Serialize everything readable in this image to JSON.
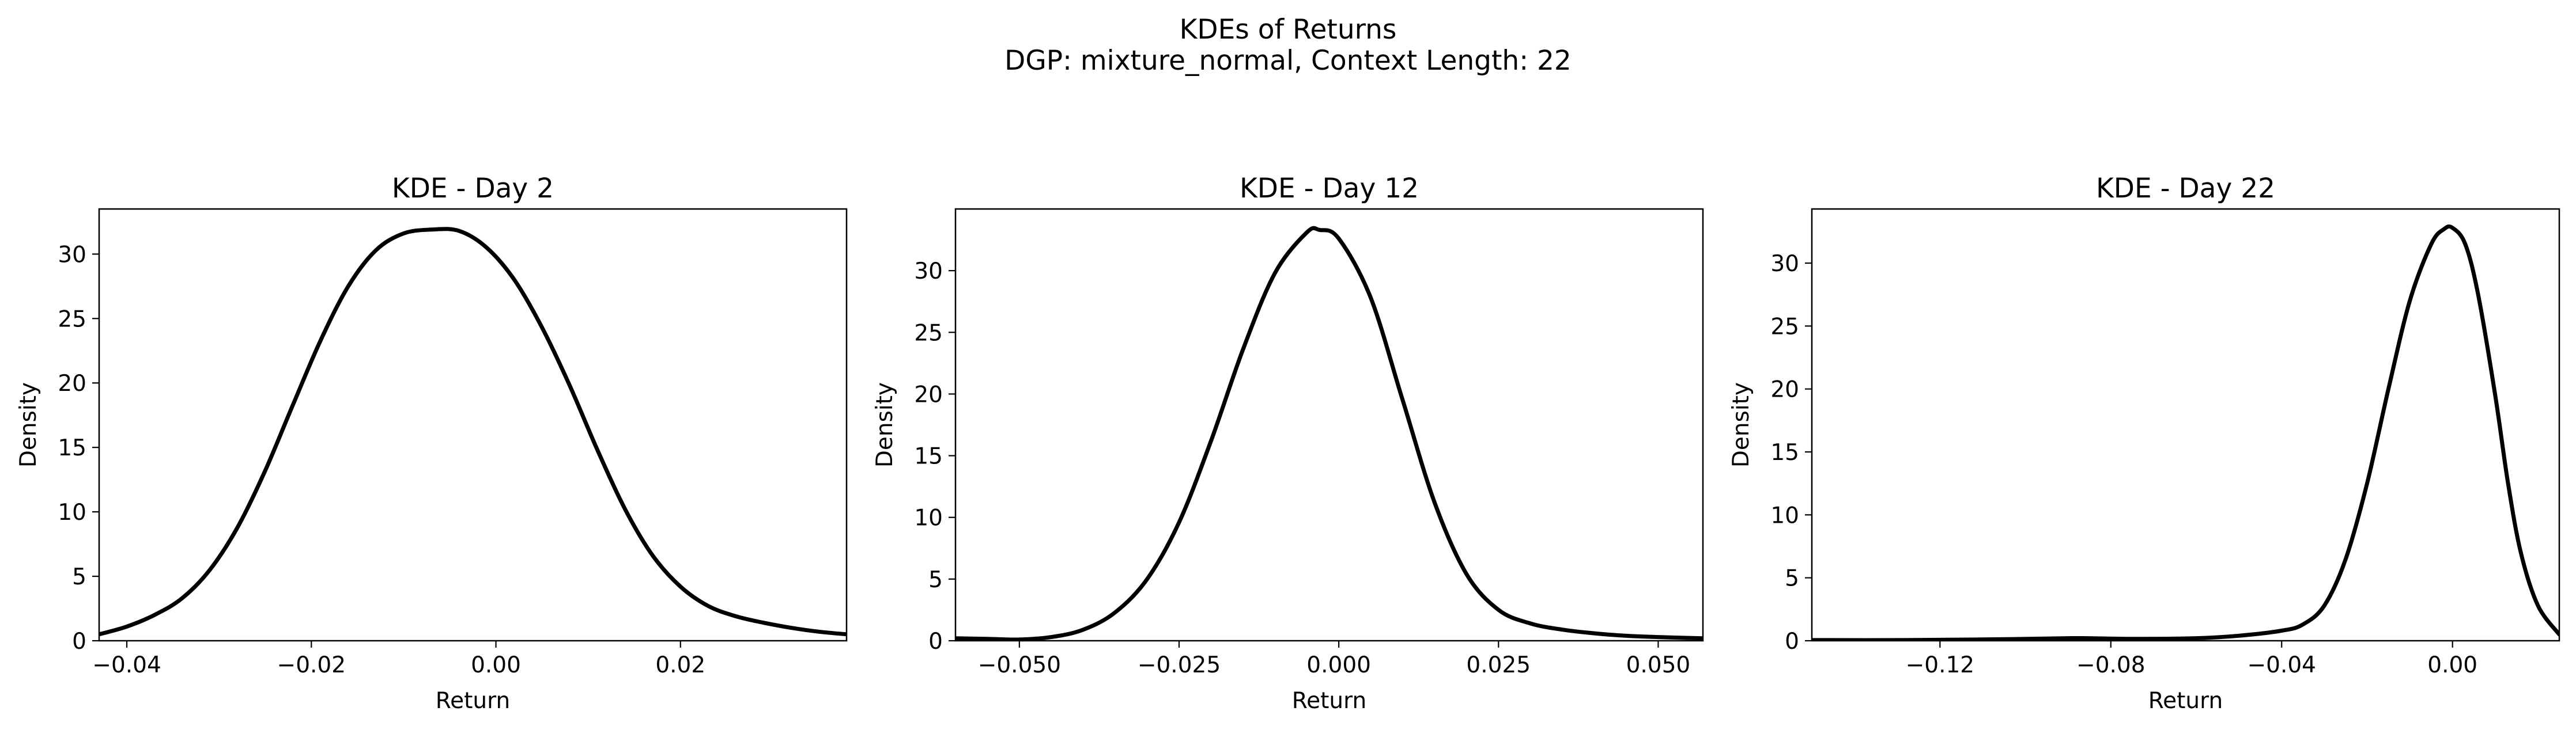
{
  "figure": {
    "title": "KDEs of Returns",
    "subtitle": "DGP: mixture_normal, Context Length: 22"
  },
  "chart_data": [
    {
      "type": "line",
      "title": "KDE - Day 2",
      "xlabel": "Return",
      "ylabel": "Density",
      "xlim": [
        -0.043,
        0.038
      ],
      "ylim": [
        0,
        33.5
      ],
      "xticks": [
        -0.04,
        -0.02,
        0.0,
        0.02
      ],
      "xtick_labels": [
        "−0.04",
        "−0.02",
        "0.00",
        "0.02"
      ],
      "yticks": [
        0,
        5,
        10,
        15,
        20,
        25,
        30
      ],
      "ytick_labels": [
        "0",
        "5",
        "10",
        "15",
        "20",
        "25",
        "30"
      ],
      "grid": false,
      "series": [
        {
          "color": "#000000",
          "x": [
            -0.043,
            -0.04,
            -0.037,
            -0.034,
            -0.031,
            -0.028,
            -0.025,
            -0.022,
            -0.019,
            -0.016,
            -0.013,
            -0.01,
            -0.007,
            -0.004,
            -0.001,
            0.002,
            0.005,
            0.008,
            0.011,
            0.014,
            0.017,
            0.02,
            0.023,
            0.026,
            0.029,
            0.032,
            0.035,
            0.038
          ],
          "y": [
            0.5,
            1.1,
            2.0,
            3.3,
            5.5,
            8.8,
            13.2,
            18.3,
            23.3,
            27.5,
            30.3,
            31.6,
            31.9,
            31.8,
            30.5,
            28.0,
            24.3,
            19.8,
            14.8,
            10.2,
            6.6,
            4.2,
            2.7,
            1.9,
            1.4,
            1.0,
            0.7,
            0.5
          ]
        }
      ]
    },
    {
      "type": "line",
      "title": "KDE - Day 12",
      "xlabel": "Return",
      "ylabel": "Density",
      "xlim": [
        -0.06,
        0.057
      ],
      "ylim": [
        0,
        35
      ],
      "xticks": [
        -0.05,
        -0.025,
        0.0,
        0.025,
        0.05
      ],
      "xtick_labels": [
        "−0.050",
        "−0.025",
        "0.000",
        "0.025",
        "0.050"
      ],
      "yticks": [
        0,
        5,
        10,
        15,
        20,
        25,
        30
      ],
      "ytick_labels": [
        "0",
        "5",
        "10",
        "15",
        "20",
        "25",
        "30"
      ],
      "grid": false,
      "series": [
        {
          "color": "#000000",
          "x": [
            -0.06,
            -0.055,
            -0.05,
            -0.045,
            -0.04,
            -0.035,
            -0.03,
            -0.025,
            -0.02,
            -0.015,
            -0.01,
            -0.005,
            -0.003,
            0.0,
            0.005,
            0.01,
            0.015,
            0.02,
            0.025,
            0.03,
            0.035,
            0.04,
            0.045,
            0.05,
            0.057
          ],
          "y": [
            0.2,
            0.15,
            0.1,
            0.3,
            0.9,
            2.3,
            5.0,
            9.6,
            16.2,
            23.6,
            29.8,
            33.1,
            33.3,
            32.6,
            27.8,
            19.5,
            11.2,
            5.4,
            2.5,
            1.4,
            0.9,
            0.6,
            0.4,
            0.3,
            0.2
          ]
        }
      ]
    },
    {
      "type": "line",
      "title": "KDE - Day 22",
      "xlabel": "Return",
      "ylabel": "Density",
      "xlim": [
        -0.15,
        0.025
      ],
      "ylim": [
        0,
        34.3
      ],
      "xticks": [
        -0.12,
        -0.08,
        -0.04,
        0.0
      ],
      "xtick_labels": [
        "−0.12",
        "−0.08",
        "−0.04",
        "0.00"
      ],
      "yticks": [
        0,
        5,
        10,
        15,
        20,
        25,
        30
      ],
      "ytick_labels": [
        "0",
        "5",
        "10",
        "15",
        "20",
        "25",
        "30"
      ],
      "grid": false,
      "series": [
        {
          "color": "#000000",
          "x": [
            -0.15,
            -0.13,
            -0.11,
            -0.09,
            -0.085,
            -0.075,
            -0.06,
            -0.05,
            -0.04,
            -0.035,
            -0.03,
            -0.025,
            -0.02,
            -0.015,
            -0.01,
            -0.005,
            -0.002,
            0.0,
            0.003,
            0.006,
            0.01,
            0.013,
            0.016,
            0.02,
            0.025
          ],
          "y": [
            0.05,
            0.05,
            0.1,
            0.2,
            0.2,
            0.15,
            0.2,
            0.4,
            0.8,
            1.3,
            2.8,
            6.5,
            12.5,
            20.0,
            27.0,
            31.5,
            32.7,
            32.8,
            31.5,
            27.5,
            19.5,
            12.5,
            7.0,
            2.8,
            0.5
          ]
        }
      ]
    }
  ]
}
